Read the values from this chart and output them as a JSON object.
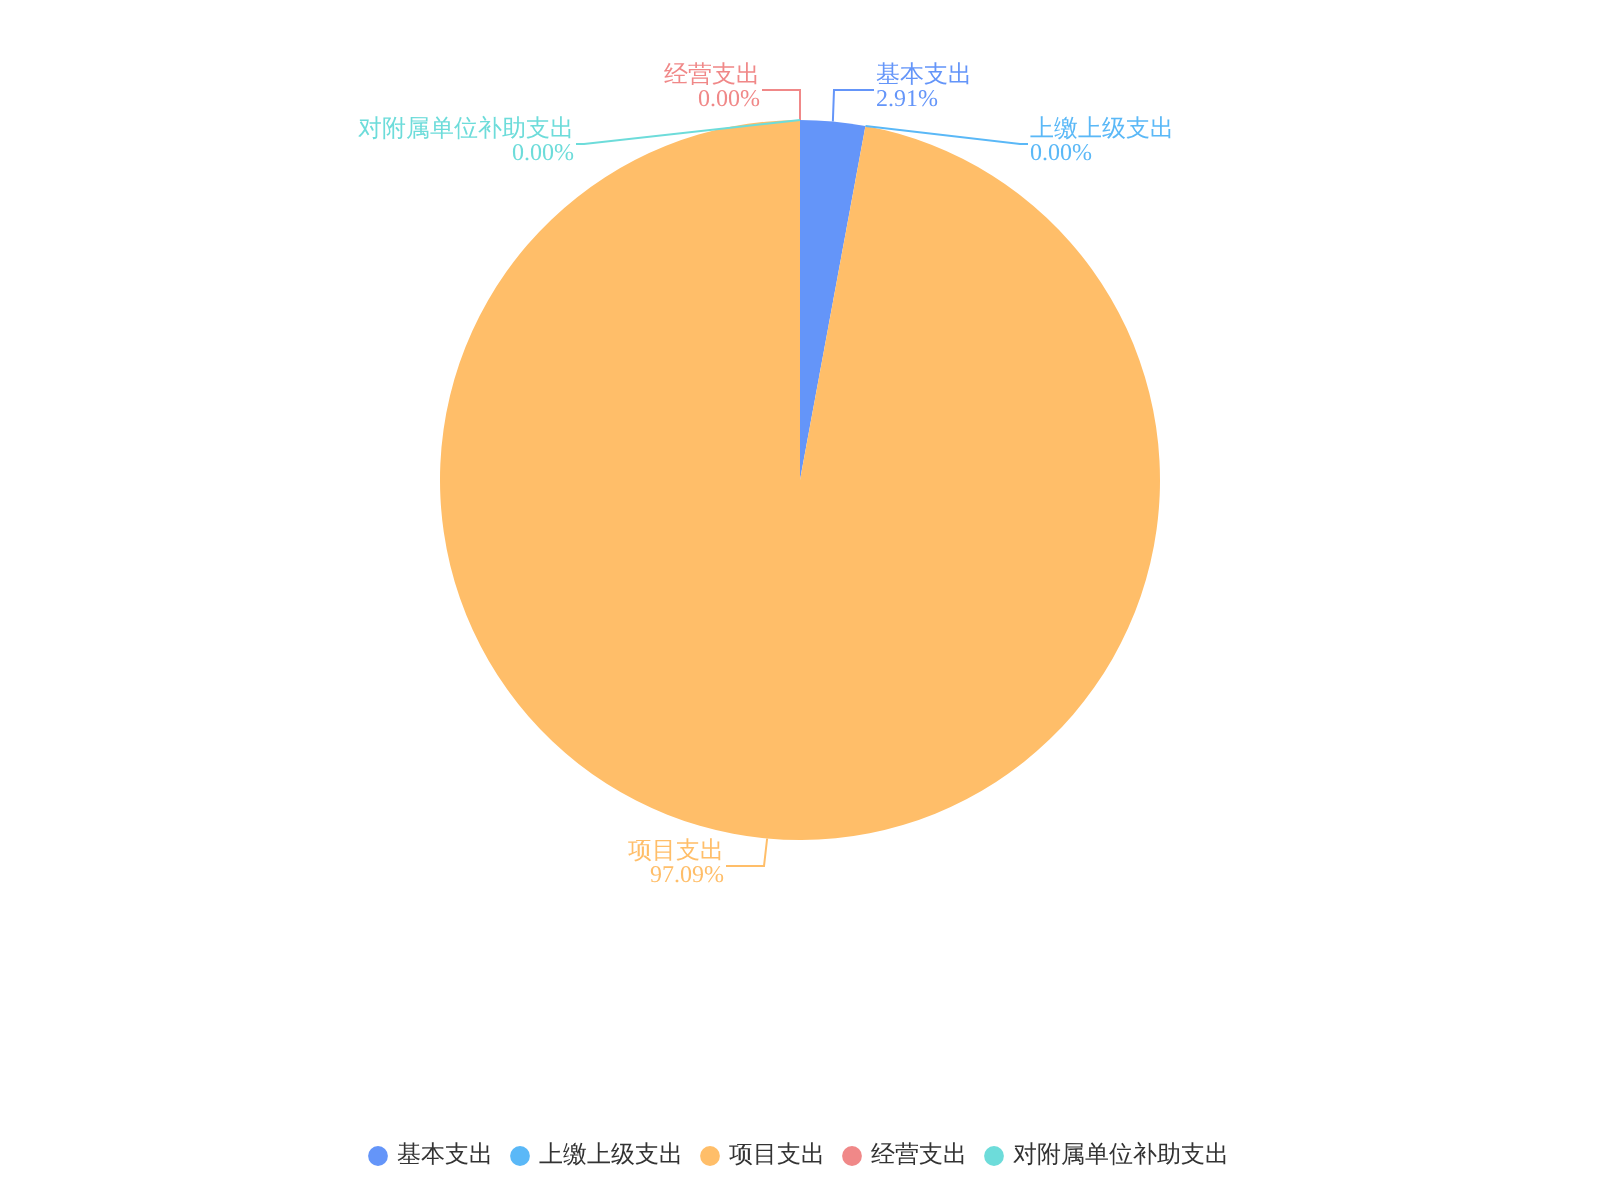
{
  "chart_data": {
    "type": "pie",
    "categories": [
      "基本支出",
      "上缴上级支出",
      "项目支出",
      "经营支出",
      "对附属单位补助支出"
    ],
    "values": [
      2.91,
      0,
      97.09,
      0,
      0
    ],
    "colors": [
      "#6495f9",
      "#5ab8f7",
      "#ffbe69",
      "#f08888",
      "#6ddcda"
    ],
    "value_labels": [
      "2.91%",
      "0.00%",
      "97.09%",
      "0.00%",
      "0.00%"
    ],
    "legend": "bottom"
  }
}
